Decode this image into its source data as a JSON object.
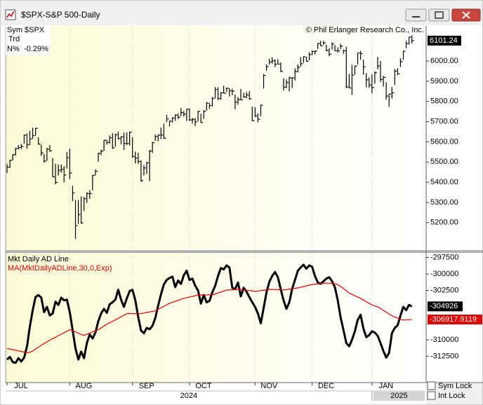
{
  "window": {
    "title": "$SPX-S&P 500-Daily"
  },
  "info": {
    "sym_label": "Sym",
    "sym": "$SPX",
    "trd_label": "Trd",
    "n_label": "N%",
    "n": "-0.29%"
  },
  "copyright": "© Phil Erlanger Research Co., Inc.",
  "controls": {
    "sym_lock": "Sym Lock",
    "int_lock": "Int Lock"
  },
  "years": [
    "2024",
    "2025"
  ],
  "chart_data": [
    {
      "type": "ohlc",
      "color": "#000000",
      "xgrid": true,
      "xlim": [
        -0.5,
        147
      ],
      "ylim": [
        5064,
        6174
      ],
      "yticks": [
        {
          "value": 5200,
          "label": "5200.00"
        },
        {
          "value": 5300,
          "label": "5300.00"
        },
        {
          "value": 5400,
          "label": "5400.00"
        },
        {
          "value": 5500,
          "label": "5500.00"
        },
        {
          "value": 5600,
          "label": "5600.00"
        },
        {
          "value": 5700,
          "label": "5700.00"
        },
        {
          "value": 5800,
          "label": "5800.00"
        },
        {
          "value": 5900,
          "label": "5900.00"
        },
        {
          "value": 6000,
          "label": "6000.00"
        }
      ],
      "high": [
        5490,
        5510,
        5540,
        5570,
        5584,
        5590,
        5636,
        5642,
        5655,
        5670,
        5669,
        5622,
        5586,
        5540,
        5570,
        5585,
        5520,
        5492,
        5488,
        5488,
        5479,
        5551,
        5566,
        5383,
        5312,
        5312,
        5330,
        5327,
        5351,
        5361,
        5436,
        5464,
        5546,
        5562,
        5609,
        5611,
        5632,
        5643,
        5641,
        5651,
        5628,
        5646,
        5647,
        5651,
        5623,
        5552,
        5546,
        5509,
        5485,
        5501,
        5560,
        5600,
        5637,
        5637,
        5671,
        5690,
        5734,
        5704,
        5722,
        5736,
        5741,
        5767,
        5753,
        5763,
        5765,
        5720,
        5718,
        5753,
        5739,
        5757,
        5796,
        5792,
        5822,
        5871,
        5870,
        5846,
        5878,
        5869,
        5866,
        5863,
        5834,
        5822,
        5862,
        5843,
        5847,
        5851,
        5775,
        5772,
        5741,
        5784,
        5936,
        5984,
        6012,
        6018,
        6009,
        6009,
        5993,
        5915,
        5909,
        5923,
        5920,
        5964,
        5984,
        6020,
        6025,
        6021,
        6044,
        6053,
        6052,
        6089,
        6100,
        6100,
        6081,
        6064,
        6093,
        6079,
        6068,
        6085,
        6057,
        6071,
        5936,
        5982,
        5978,
        6040,
        6050,
        6007,
        5941,
        5920,
        5935,
        5949,
        6021,
        6000,
        5927,
        5895,
        5837,
        5872,
        5960,
        5965,
        6014,
        6051,
        6100,
        6119,
        6128
      ],
      "low": [
        5446,
        5470,
        5509,
        5531,
        5563,
        5565,
        5591,
        5567,
        5584,
        5615,
        5631,
        5586,
        5531,
        5497,
        5506,
        5551,
        5426,
        5390,
        5433,
        5447,
        5399,
        5468,
        5416,
        5307,
        5119,
        5194,
        5195,
        5258,
        5298,
        5318,
        5360,
        5434,
        5502,
        5534,
        5555,
        5587,
        5592,
        5565,
        5576,
        5611,
        5588,
        5560,
        5585,
        5582,
        5522,
        5493,
        5491,
        5403,
        5434,
        5441,
        5406,
        5545,
        5605,
        5603,
        5614,
        5615,
        5698,
        5676,
        5696,
        5704,
        5713,
        5727,
        5725,
        5703,
        5703,
        5690,
        5678,
        5702,
        5694,
        5714,
        5754,
        5764,
        5775,
        5815,
        5807,
        5808,
        5840,
        5846,
        5825,
        5831,
        5762,
        5784,
        5806,
        5818,
        5815,
        5810,
        5702,
        5723,
        5697,
        5726,
        5864,
        5952,
        5983,
        5987,
        5970,
        5985,
        5946,
        5854,
        5865,
        5850,
        5866,
        5903,
        5944,
        5973,
        5991,
        5998,
        6004,
        6030,
        6033,
        6060,
        6074,
        6079,
        6048,
        6024,
        6057,
        6050,
        6042,
        6059,
        6036,
        5866,
        5866,
        5833,
        5933,
        5982,
        6007,
        5932,
        5870,
        5869,
        5840,
        5888,
        5960,
        5897,
        5874,
        5809,
        5773,
        5814,
        5882,
        5930,
        5971,
        6006,
        6064,
        6081,
        6088
      ],
      "close": [
        5475,
        5509,
        5537,
        5567,
        5572,
        5577,
        5633,
        5585,
        5615,
        5631,
        5667,
        5589,
        5545,
        5505,
        5564,
        5555,
        5427,
        5399,
        5459,
        5464,
        5436,
        5522,
        5446,
        5347,
        5186,
        5240,
        5199,
        5319,
        5344,
        5344,
        5434,
        5455,
        5543,
        5554,
        5608,
        5597,
        5620,
        5571,
        5635,
        5617,
        5625,
        5592,
        5592,
        5648,
        5528,
        5520,
        5503,
        5408,
        5471,
        5496,
        5554,
        5596,
        5626,
        5634,
        5634,
        5618,
        5714,
        5703,
        5718,
        5732,
        5722,
        5745,
        5738,
        5762,
        5709,
        5710,
        5699,
        5751,
        5696,
        5751,
        5792,
        5780,
        5815,
        5859,
        5815,
        5843,
        5841,
        5865,
        5853,
        5851,
        5797,
        5809,
        5808,
        5823,
        5832,
        5813,
        5705,
        5729,
        5712,
        5782,
        5929,
        5973,
        5996,
        6001,
        5984,
        5985,
        5949,
        5871,
        5894,
        5917,
        5917,
        5948,
        5969,
        5987,
        6021,
        5999,
        6032,
        6047,
        6050,
        6087,
        6075,
        6090,
        6053,
        6034,
        6085,
        6051,
        6051,
        6074,
        6051,
        5872,
        5867,
        5931,
        5975,
        6040,
        6037,
        5971,
        5907,
        5882,
        5869,
        5942,
        5975,
        5909,
        5919,
        5827,
        5837,
        5843,
        5950,
        5937,
        5997,
        6049,
        6086,
        6119,
        6101.24
      ]
    },
    {
      "type": "line",
      "xgrid": true,
      "xlim": [
        -0.5,
        147
      ],
      "ylim": [
        -316400,
        -296800
      ],
      "xticks": [
        {
          "value": 0,
          "label": "JUL"
        },
        {
          "value": 22,
          "label": "AUG"
        },
        {
          "value": 44,
          "label": "SEP"
        },
        {
          "value": 64,
          "label": "OCT"
        },
        {
          "value": 87,
          "label": "NOV"
        },
        {
          "value": 107,
          "label": "DEC"
        },
        {
          "value": 128,
          "label": "JAN"
        }
      ],
      "yticks": [
        -297500,
        -300000,
        -302500,
        -310000,
        -312500
      ],
      "series": [
        {
          "name": "Mkt Daily AD Line",
          "color": "#000000",
          "values": [
            -313000,
            -312600,
            -313400,
            -313500,
            -312800,
            -313300,
            -312700,
            -311000,
            -308000,
            -305500,
            -303500,
            -303200,
            -303600,
            -305800,
            -305000,
            -306300,
            -306000,
            -304200,
            -304700,
            -303600,
            -304000,
            -303900,
            -305800,
            -308500,
            -311300,
            -313000,
            -311800,
            -312800,
            -310500,
            -309200,
            -309800,
            -308900,
            -307200,
            -306000,
            -305300,
            -305900,
            -304600,
            -304300,
            -303900,
            -302400,
            -303900,
            -305000,
            -303700,
            -302600,
            -302400,
            -304000,
            -306500,
            -308600,
            -309000,
            -308200,
            -308400,
            -307900,
            -306700,
            -304800,
            -303100,
            -301600,
            -300900,
            -300600,
            -300400,
            -302000,
            -301000,
            -301500,
            -300200,
            -299500,
            -300900,
            -300700,
            -301800,
            -302500,
            -304500,
            -303200,
            -304300,
            -304100,
            -302800,
            -301800,
            -300300,
            -299100,
            -299300,
            -298700,
            -299000,
            -302100,
            -302300,
            -301300,
            -303400,
            -302100,
            -302700,
            -303500,
            -304300,
            -305000,
            -306000,
            -307500,
            -305200,
            -302800,
            -301200,
            -300300,
            -299700,
            -300500,
            -302300,
            -304000,
            -305300,
            -304300,
            -302300,
            -300900,
            -299500,
            -299000,
            -298600,
            -299200,
            -298700,
            -298900,
            -300300,
            -301300,
            -301500,
            -301100,
            -300700,
            -300500,
            -301100,
            -302000,
            -304000,
            -306600,
            -308500,
            -310500,
            -311000,
            -310000,
            -308700,
            -307000,
            -306200,
            -308300,
            -309600,
            -309300,
            -308700,
            -308900,
            -309400,
            -310500,
            -311700,
            -312700,
            -312000,
            -309000,
            -308200,
            -307800,
            -306300,
            -305000,
            -305500,
            -304700,
            -304926
          ]
        },
        {
          "name": "MA(MktDailyADLine,30,0,Exp)",
          "color": "#dd0000",
          "values": [
            -311330,
            -311420,
            -311510,
            -311600,
            -311690,
            -311780,
            -311870,
            -311970,
            -311900,
            -311700,
            -311400,
            -311120,
            -310850,
            -310580,
            -310320,
            -310060,
            -309830,
            -309600,
            -309380,
            -309150,
            -308920,
            -308700,
            -308470,
            -308600,
            -308800,
            -309000,
            -309200,
            -309320,
            -309150,
            -309000,
            -308800,
            -308650,
            -308470,
            -308200,
            -307900,
            -307650,
            -307420,
            -307200,
            -306970,
            -306740,
            -306500,
            -306270,
            -306040,
            -306000,
            -306050,
            -306020,
            -306050,
            -306040,
            -305930,
            -305850,
            -305770,
            -305690,
            -305610,
            -305370,
            -305140,
            -304910,
            -304680,
            -304450,
            -304300,
            -304150,
            -304000,
            -303850,
            -303700,
            -303600,
            -303500,
            -303400,
            -303300,
            -303180,
            -303200,
            -303170,
            -303190,
            -303160,
            -303180,
            -303030,
            -302880,
            -302740,
            -302590,
            -302440,
            -302420,
            -302400,
            -302380,
            -302350,
            -302330,
            -302400,
            -302460,
            -302520,
            -302590,
            -302650,
            -302590,
            -302520,
            -302460,
            -302390,
            -302330,
            -302350,
            -302370,
            -302390,
            -302410,
            -302440,
            -302370,
            -302300,
            -302240,
            -302180,
            -302120,
            -302010,
            -301910,
            -301800,
            -301700,
            -301590,
            -301550,
            -301510,
            -301460,
            -301420,
            -301380,
            -301400,
            -301450,
            -301500,
            -301590,
            -301900,
            -302200,
            -302550,
            -302900,
            -303100,
            -303300,
            -303500,
            -303700,
            -303950,
            -304200,
            -304450,
            -304700,
            -304850,
            -304980,
            -305250,
            -305530,
            -305800,
            -306080,
            -306350,
            -306550,
            -306700,
            -306850,
            -307000,
            -306960,
            -306940,
            -306917.9119
          ]
        }
      ]
    }
  ]
}
